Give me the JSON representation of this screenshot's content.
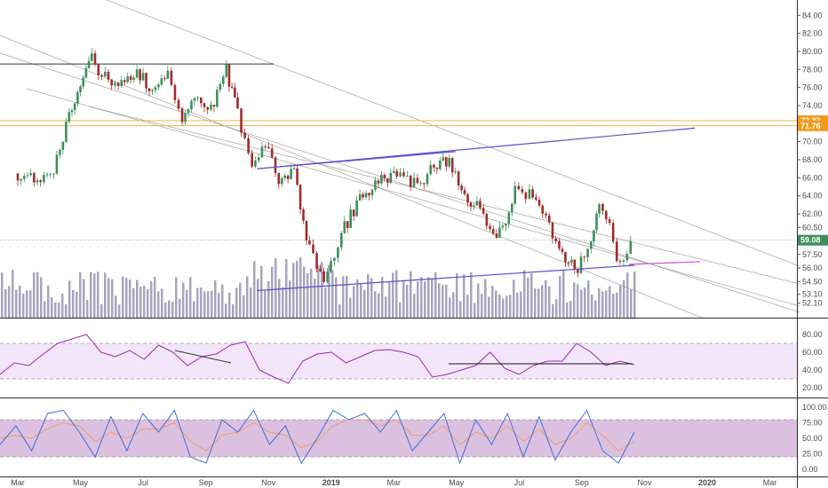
{
  "colors": {
    "up": "#3d8f5c",
    "down": "#a12b2b",
    "volume": "#8a85a8",
    "trend": "#5a4fd1",
    "resistance": "#f0b64a",
    "price_tag": "#3d8f5c",
    "orange_tag": "#f19a1c",
    "rsi_line": "#9c27b0",
    "rsi_band": "#f3e6fb",
    "stoch_k": "#3f6fd8",
    "stoch_d": "#e9a06e",
    "stoch_band": "#dcc0e0",
    "channel": "#8c8c8c",
    "grid": "#c9c9c9"
  },
  "chart_data": [
    {
      "type": "candlestick",
      "ylim": [
        50.5,
        85.5
      ],
      "y_ticks": [
        "84.00",
        "82.00",
        "80.00",
        "78.00",
        "76.00",
        "74.00",
        "70.00",
        "68.00",
        "66.00",
        "64.00",
        "62.00",
        "60.50",
        "57.50",
        "56.00",
        "54.50",
        "53.10",
        "52.10"
      ],
      "x_ticks": [
        {
          "label": "Mar",
          "bold": false
        },
        {
          "label": "May",
          "bold": false
        },
        {
          "label": "Jul",
          "bold": false
        },
        {
          "label": "Sep",
          "bold": false
        },
        {
          "label": "Nov",
          "bold": false
        },
        {
          "label": "2019",
          "bold": true
        },
        {
          "label": "Mar",
          "bold": false
        },
        {
          "label": "May",
          "bold": false
        },
        {
          "label": "Jul",
          "bold": false
        },
        {
          "label": "Sep",
          "bold": false
        },
        {
          "label": "Nov",
          "bold": false
        },
        {
          "label": "2020",
          "bold": true
        },
        {
          "label": "Mar",
          "bold": false
        }
      ],
      "close_path": [
        [
          "2018-03-01",
          66.5
        ],
        [
          "2018-03-20",
          65.8
        ],
        [
          "2018-04-05",
          67.0
        ],
        [
          "2018-04-20",
          73.0
        ],
        [
          "2018-05-01",
          76.5
        ],
        [
          "2018-05-12",
          79.0
        ],
        [
          "2018-05-25",
          77.0
        ],
        [
          "2018-06-10",
          76.5
        ],
        [
          "2018-06-25",
          77.5
        ],
        [
          "2018-07-10",
          76.0
        ],
        [
          "2018-07-25",
          77.2
        ],
        [
          "2018-08-08",
          72.5
        ],
        [
          "2018-08-20",
          75.5
        ],
        [
          "2018-09-05",
          73.8
        ],
        [
          "2018-09-20",
          78.2
        ],
        [
          "2018-10-01",
          73.0
        ],
        [
          "2018-10-15",
          67.0
        ],
        [
          "2018-10-28",
          69.5
        ],
        [
          "2018-11-10",
          66.0
        ],
        [
          "2018-11-25",
          66.5
        ],
        [
          "2018-12-10",
          58.0
        ],
        [
          "2018-12-24",
          54.2
        ],
        [
          "2019-01-10",
          60.0
        ],
        [
          "2019-01-28",
          63.5
        ],
        [
          "2019-02-15",
          66.0
        ],
        [
          "2019-03-05",
          66.2
        ],
        [
          "2019-03-25",
          65.0
        ],
        [
          "2019-04-10",
          67.5
        ],
        [
          "2019-04-25",
          68.0
        ],
        [
          "2019-05-10",
          64.0
        ],
        [
          "2019-05-25",
          62.5
        ],
        [
          "2019-06-10",
          58.8
        ],
        [
          "2019-06-28",
          64.5
        ],
        [
          "2019-07-12",
          64.0
        ],
        [
          "2019-07-28",
          62.0
        ],
        [
          "2019-08-10",
          58.0
        ],
        [
          "2019-08-28",
          56.0
        ],
        [
          "2019-09-10",
          59.5
        ],
        [
          "2019-09-18",
          63.5
        ],
        [
          "2019-09-28",
          61.0
        ],
        [
          "2019-10-05",
          56.5
        ],
        [
          "2019-10-15",
          57.5
        ],
        [
          "2019-10-22",
          59.1
        ]
      ],
      "support_trendline": [
        [
          "2018-10-20",
          53.5
        ],
        [
          "2019-10-22",
          56.3
        ]
      ],
      "resistance_trendline": [
        [
          "2018-10-20",
          67.0
        ],
        [
          "2019-05-01",
          68.9
        ]
      ],
      "extended_trendline": [
        [
          "2018-10-20",
          67.0
        ],
        [
          "2019-12-20",
          71.5
        ]
      ],
      "horizontal_top": 78.6,
      "volume_note": "volume histogram at bottom of price pane"
    },
    {
      "type": "line",
      "name": "RSI",
      "ylim": [
        10,
        90
      ],
      "y_ticks": [
        "80.00",
        "60.00",
        "40.00",
        "20.00"
      ],
      "band": [
        30,
        70
      ],
      "values": [
        35,
        48,
        45,
        58,
        70,
        75,
        80,
        60,
        55,
        62,
        52,
        68,
        60,
        45,
        55,
        58,
        68,
        72,
        40,
        32,
        25,
        50,
        58,
        60,
        48,
        55,
        62,
        63,
        60,
        55,
        32,
        35,
        40,
        45,
        60,
        42,
        35,
        45,
        50,
        50,
        70,
        60,
        45,
        50,
        46
      ]
    },
    {
      "type": "line",
      "name": "Stochastic",
      "ylim": [
        -10,
        110
      ],
      "y_ticks": [
        "100.00",
        "75.00",
        "50.00",
        "25.00",
        "0.00"
      ],
      "band": [
        20,
        80
      ],
      "k_values": [
        40,
        70,
        30,
        90,
        95,
        60,
        20,
        85,
        30,
        90,
        60,
        95,
        20,
        10,
        80,
        60,
        95,
        40,
        70,
        10,
        50,
        95,
        80,
        90,
        60,
        95,
        30,
        60,
        90,
        10,
        80,
        40,
        90,
        20,
        85,
        15,
        60,
        95,
        30,
        10,
        60
      ],
      "d_values": [
        50,
        55,
        50,
        65,
        75,
        70,
        45,
        60,
        50,
        65,
        65,
        75,
        45,
        30,
        55,
        60,
        75,
        60,
        55,
        35,
        45,
        70,
        80,
        80,
        70,
        80,
        55,
        55,
        70,
        40,
        60,
        50,
        70,
        45,
        65,
        40,
        50,
        75,
        55,
        30,
        45
      ]
    }
  ],
  "tags": {
    "price_last": "59.08",
    "resistance_hi": "72.32",
    "resistance_lo": "71.76"
  }
}
